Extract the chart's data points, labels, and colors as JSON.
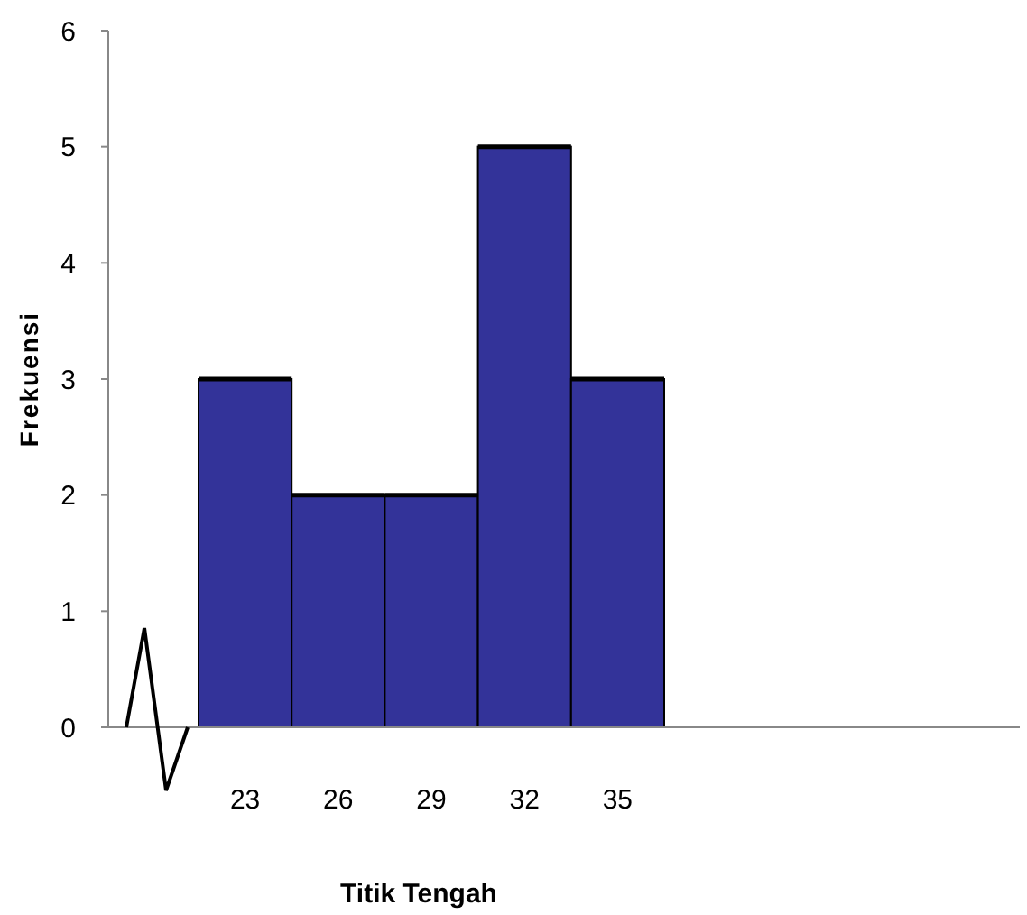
{
  "chart_data": {
    "type": "bar",
    "xlabel": "Titik Tengah",
    "ylabel": "Frekuensi",
    "categories": [
      "23",
      "26",
      "29",
      "32",
      "35"
    ],
    "values": [
      3,
      2,
      2,
      5,
      3
    ],
    "color": "#333399",
    "ylim": [
      0,
      6
    ],
    "yticks": [
      0,
      1,
      2,
      3,
      4,
      5,
      6
    ],
    "grid": false,
    "legend": false
  }
}
